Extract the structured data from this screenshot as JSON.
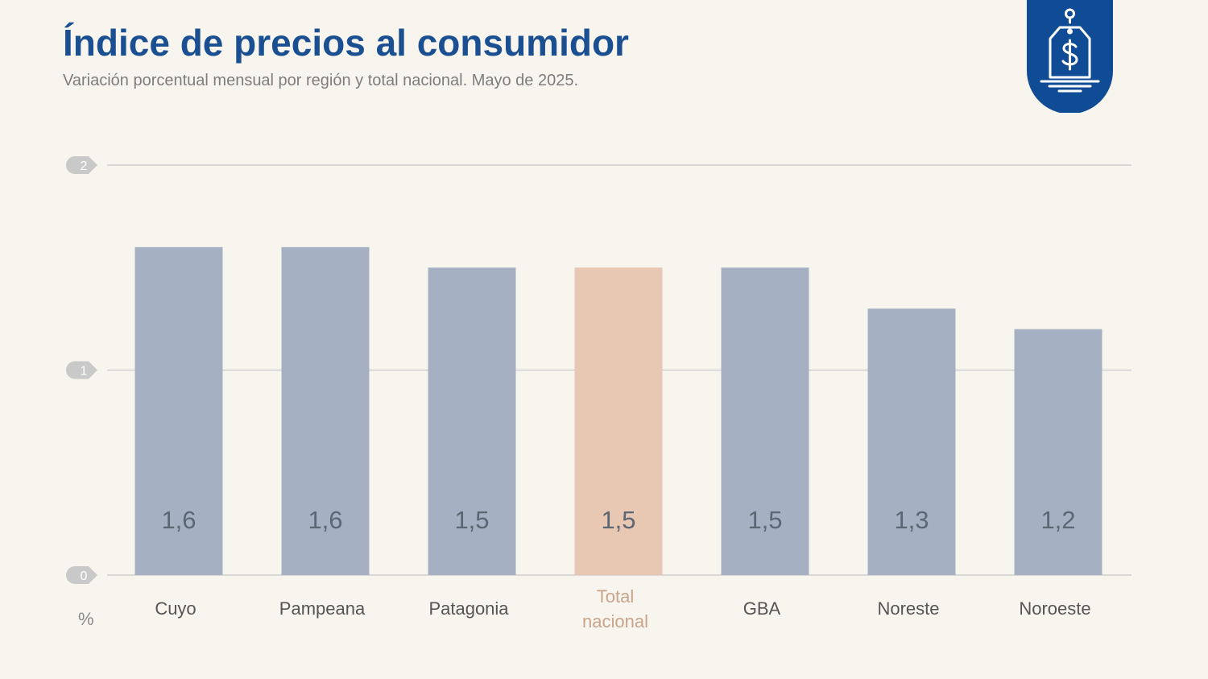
{
  "header": {
    "title": "Índice de precios al consumidor",
    "subtitle": "Variación porcentual mensual por región y total nacional. Mayo de 2025."
  },
  "badge": {
    "icon": "price-tag-dollar-icon"
  },
  "colors": {
    "title": "#1a4f91",
    "bar": "#a5b1c2",
    "highlight": "#e8c7b3",
    "value_text": "#5d6673",
    "grid": "#cfcfcf",
    "badge": "#0f4c95"
  },
  "chart_data": {
    "type": "bar",
    "title": "Índice de precios al consumidor",
    "subtitle": "Variación porcentual mensual por región y total nacional. Mayo de 2025.",
    "categories": [
      "Cuyo",
      "Pampeana",
      "Patagonia",
      "Total nacional",
      "GBA",
      "Noreste",
      "Noroeste"
    ],
    "values": [
      1.6,
      1.6,
      1.5,
      1.5,
      1.5,
      1.3,
      1.2
    ],
    "value_labels": [
      "1,6",
      "1,6",
      "1,5",
      "1,5",
      "1,5",
      "1,3",
      "1,2"
    ],
    "highlight_category": "Total nacional",
    "ylim": [
      0,
      2
    ],
    "yticks": [
      0,
      1,
      2
    ],
    "yunit": "%",
    "grid": true,
    "legend": "none"
  }
}
